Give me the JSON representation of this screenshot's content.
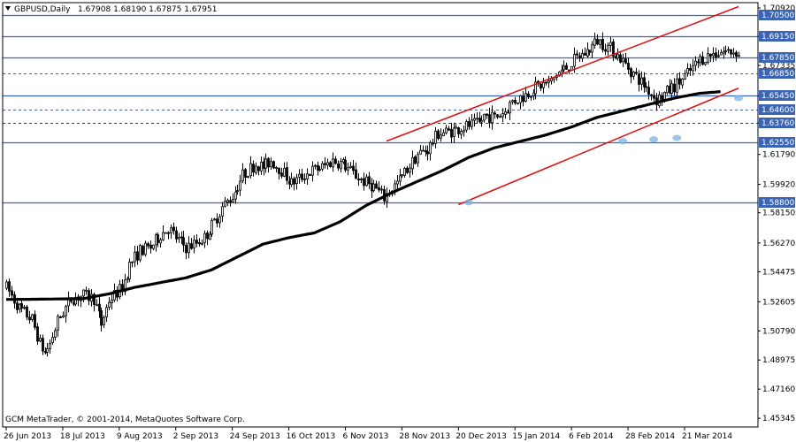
{
  "header": {
    "symbol": "GBPUSD,Daily",
    "ohlc": "1.67908 1.68190 1.67875 1.67951"
  },
  "footer": {
    "copyright": "GCM MetaTrader, © 2001-2014, MetaQuotes Software Corp."
  },
  "colors": {
    "background": "#ffffff",
    "frame": "#000000",
    "candle": "#000000",
    "sma": "#000000",
    "channel": "#dc1414",
    "hline": "#3c64b4",
    "price_label_bg": "#3c64b4",
    "price_label_text": "#ffffff",
    "touch_marker": "#7ab4e6"
  },
  "chart_data": {
    "type": "candlestick",
    "symbol": "GBPUSD",
    "timeframe": "Daily",
    "last_bar": {
      "open": 1.67908,
      "high": 1.6819,
      "low": 1.67875,
      "close": 1.67951
    },
    "ylim": [
      1.448,
      1.7125
    ],
    "y_ticks": [
      "1.70920",
      "1.69150",
      "1.67335",
      "1.65450",
      "1.63760",
      "1.61790",
      "1.59920",
      "1.58150",
      "1.56270",
      "1.54475",
      "1.52605",
      "1.50790",
      "1.48975",
      "1.47160",
      "1.45345"
    ],
    "x_ticks": [
      "26 Jun 2013",
      "18 Jul 2013",
      "9 Aug 2013",
      "2 Sep 2013",
      "24 Sep 2013",
      "16 Oct 2013",
      "6 Nov 2013",
      "28 Nov 2013",
      "20 Dec 2013",
      "15 Jan 2014",
      "6 Feb 2014",
      "28 Feb 2014",
      "21 Mar 2014"
    ],
    "bars_per_tick": 16,
    "total_bars": 206,
    "price_path": [
      [
        0,
        1.535
      ],
      [
        5,
        1.522
      ],
      [
        10,
        1.515
      ],
      [
        13,
        1.5
      ],
      [
        15,
        1.494
      ],
      [
        17,
        1.5
      ],
      [
        20,
        1.514
      ],
      [
        25,
        1.528
      ],
      [
        30,
        1.53
      ],
      [
        34,
        1.528
      ],
      [
        37,
        1.512
      ],
      [
        40,
        1.527
      ],
      [
        45,
        1.535
      ],
      [
        48,
        1.549
      ],
      [
        52,
        1.558
      ],
      [
        56,
        1.56
      ],
      [
        60,
        1.568
      ],
      [
        63,
        1.572
      ],
      [
        66,
        1.566
      ],
      [
        70,
        1.56
      ],
      [
        73,
        1.562
      ],
      [
        77,
        1.566
      ],
      [
        81,
        1.576
      ],
      [
        84,
        1.585
      ],
      [
        88,
        1.592
      ],
      [
        92,
        1.605
      ],
      [
        97,
        1.612
      ],
      [
        100,
        1.61
      ],
      [
        103,
        1.614
      ],
      [
        107,
        1.608
      ],
      [
        111,
        1.6
      ],
      [
        115,
        1.604
      ],
      [
        119,
        1.608
      ],
      [
        123,
        1.61
      ],
      [
        127,
        1.614
      ],
      [
        131,
        1.612
      ],
      [
        135,
        1.606
      ],
      [
        139,
        1.601
      ],
      [
        143,
        1.598
      ],
      [
        147,
        1.591
      ],
      [
        149,
        1.595
      ],
      [
        153,
        1.602
      ],
      [
        157,
        1.611
      ],
      [
        160,
        1.618
      ],
      [
        164,
        1.621
      ],
      [
        168,
        1.631
      ],
      [
        172,
        1.632
      ],
      [
        176,
        1.634
      ],
      [
        180,
        1.636
      ],
      [
        184,
        1.637
      ],
      [
        186,
        1.642
      ],
      [
        190,
        1.641
      ],
      [
        194,
        1.645
      ],
      [
        197,
        1.651
      ],
      [
        201,
        1.654
      ],
      [
        205,
        1.659
      ],
      [
        208,
        1.661
      ],
      [
        212,
        1.663
      ],
      [
        214,
        1.668
      ],
      [
        218,
        1.672
      ],
      [
        222,
        1.678
      ],
      [
        226,
        1.682
      ],
      [
        230,
        1.689
      ],
      [
        235,
        1.684
      ],
      [
        239,
        1.678
      ],
      [
        243,
        1.67
      ],
      [
        247,
        1.663
      ],
      [
        250,
        1.658
      ],
      [
        253,
        1.652
      ],
      [
        258,
        1.658
      ],
      [
        262,
        1.663
      ],
      [
        266,
        1.67
      ],
      [
        270,
        1.677
      ],
      [
        274,
        1.68
      ],
      [
        278,
        1.682
      ]
    ],
    "sma": {
      "name": "",
      "points": [
        [
          0,
          1.5275
        ],
        [
          10,
          1.5276
        ],
        [
          20,
          1.5278
        ],
        [
          30,
          1.528
        ],
        [
          40,
          1.531
        ],
        [
          50,
          1.535
        ],
        [
          60,
          1.538
        ],
        [
          70,
          1.541
        ],
        [
          80,
          1.546
        ],
        [
          90,
          1.554
        ],
        [
          100,
          1.562
        ],
        [
          110,
          1.566
        ],
        [
          120,
          1.569
        ],
        [
          130,
          1.576
        ],
        [
          140,
          1.586
        ],
        [
          150,
          1.594
        ],
        [
          160,
          1.601
        ],
        [
          170,
          1.608
        ],
        [
          180,
          1.616
        ],
        [
          190,
          1.622
        ],
        [
          200,
          1.626
        ],
        [
          210,
          1.63
        ],
        [
          220,
          1.635
        ],
        [
          230,
          1.641
        ],
        [
          240,
          1.645
        ],
        [
          250,
          1.649
        ],
        [
          260,
          1.653
        ],
        [
          270,
          1.656
        ],
        [
          278,
          1.657
        ]
      ]
    },
    "channel_upper": {
      "from": [
        148,
        1.6262
      ],
      "to": [
        285,
        1.71
      ]
    },
    "channel_lower": {
      "from": [
        176,
        1.5866
      ],
      "to": [
        285,
        1.6592
      ]
    },
    "horizontal_levels": [
      "1.70500",
      "1.69150",
      "1.67850",
      "1.66850",
      "1.65450",
      "1.64600",
      "1.63760",
      "1.62550",
      "1.58800"
    ],
    "level_styles": {
      "1.70500": "solid",
      "1.69150": "solid",
      "1.67850": "solid",
      "1.66850": "dashed",
      "1.65450": "solid",
      "1.64600": "dashed",
      "1.63760": "dashed-dark",
      "1.62550": "solid",
      "1.58800": "solid"
    },
    "touch_markers": [
      [
        180,
        1.588
      ],
      [
        240,
        1.6262
      ],
      [
        252,
        1.6273
      ],
      [
        261,
        1.6282
      ],
      [
        320,
        1.653
      ]
    ]
  }
}
